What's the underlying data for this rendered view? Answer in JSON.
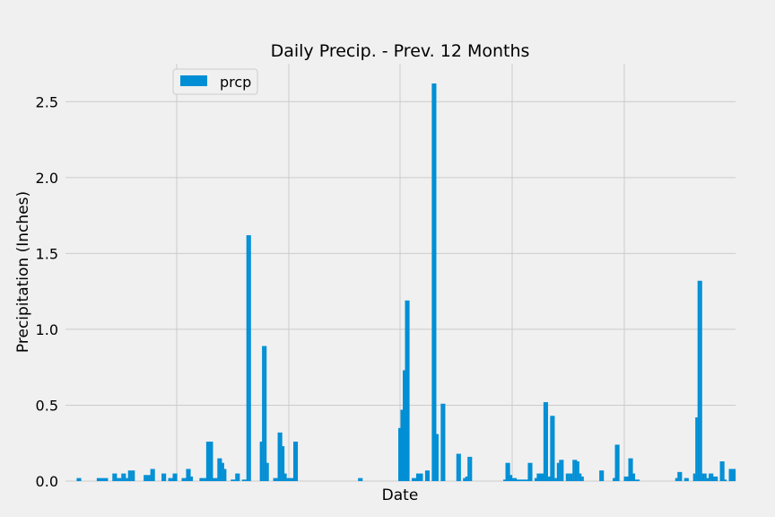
{
  "colors": {
    "background": "#f0f0f0",
    "grid": "#cbcbcb",
    "bar": "#008fd5",
    "text": "#000000",
    "legend_bg": "#f0f0f0",
    "legend_border": "#cccccc"
  },
  "chart_data": {
    "type": "bar",
    "title": "Daily Precip. - Prev. 12 Months",
    "xlabel": "Date",
    "ylabel": "Precipitation (Inches)",
    "ylim": [
      0,
      2.75
    ],
    "y_ticks": [
      "0.0",
      "0.5",
      "1.0",
      "1.5",
      "2.0",
      "2.5"
    ],
    "grid": true,
    "legend_position": "upper-left",
    "series": [
      {
        "name": "prcp",
        "values": [
          0.0,
          0.0,
          0.0,
          0.0,
          0.0,
          0.02,
          0.02,
          0.0,
          0.0,
          0.0,
          0.0,
          0.0,
          0.0,
          0.0,
          0.02,
          0.02,
          0.02,
          0.02,
          0.02,
          0.0,
          0.0,
          0.05,
          0.05,
          0.02,
          0.02,
          0.05,
          0.05,
          0.02,
          0.07,
          0.07,
          0.07,
          0.0,
          0.0,
          0.0,
          0.0,
          0.04,
          0.04,
          0.04,
          0.08,
          0.08,
          0.0,
          0.0,
          0.0,
          0.05,
          0.05,
          0.0,
          0.02,
          0.02,
          0.05,
          0.05,
          0.0,
          0.0,
          0.02,
          0.02,
          0.08,
          0.08,
          0.03,
          0.0,
          0.0,
          0.0,
          0.02,
          0.02,
          0.02,
          0.26,
          0.26,
          0.26,
          0.02,
          0.02,
          0.15,
          0.15,
          0.12,
          0.08,
          0.0,
          0.0,
          0.01,
          0.01,
          0.05,
          0.05,
          0.0,
          0.01,
          0.01,
          1.62,
          1.62,
          0.0,
          0.0,
          0.0,
          0.0,
          0.26,
          0.89,
          0.89,
          0.12,
          0.0,
          0.0,
          0.02,
          0.02,
          0.32,
          0.32,
          0.23,
          0.05,
          0.02,
          0.02,
          0.02,
          0.26,
          0.26,
          0.0,
          0.0,
          0.0,
          0.0,
          0.0,
          0.0,
          0.0,
          0.0,
          0.0,
          0.0,
          0.0,
          0.0,
          0.0,
          0.0,
          0.0,
          0.0,
          0.0,
          0.0,
          0.0,
          0.0,
          0.0,
          0.0,
          0.0,
          0.0,
          0.0,
          0.0,
          0.0,
          0.02,
          0.02,
          0.0,
          0.0,
          0.0,
          0.0,
          0.0,
          0.0,
          0.0,
          0.0,
          0.0,
          0.0,
          0.0,
          0.0,
          0.0,
          0.0,
          0.0,
          0.0,
          0.35,
          0.47,
          0.73,
          1.19,
          1.19,
          0.0,
          0.02,
          0.02,
          0.05,
          0.05,
          0.05,
          0.0,
          0.07,
          0.07,
          0.0,
          2.62,
          2.62,
          0.31,
          0.0,
          0.51,
          0.51,
          0.0,
          0.0,
          0.0,
          0.0,
          0.0,
          0.18,
          0.18,
          0.0,
          0.02,
          0.03,
          0.16,
          0.16,
          0.0,
          0.0,
          0.0,
          0.0,
          0.0,
          0.0,
          0.0,
          0.0,
          0.0,
          0.0,
          0.0,
          0.0,
          0.0,
          0.0,
          0.01,
          0.12,
          0.12,
          0.04,
          0.02,
          0.02,
          0.01,
          0.01,
          0.01,
          0.01,
          0.01,
          0.12,
          0.12,
          0.0,
          0.02,
          0.05,
          0.05,
          0.05,
          0.52,
          0.52,
          0.03,
          0.43,
          0.43,
          0.02,
          0.12,
          0.14,
          0.14,
          0.0,
          0.05,
          0.05,
          0.05,
          0.14,
          0.14,
          0.13,
          0.05,
          0.03,
          0.0,
          0.0,
          0.0,
          0.0,
          0.0,
          0.0,
          0.0,
          0.07,
          0.07,
          0.0,
          0.0,
          0.0,
          0.0,
          0.02,
          0.24,
          0.24,
          0.0,
          0.0,
          0.03,
          0.03,
          0.15,
          0.15,
          0.05,
          0.01,
          0.01,
          0.0,
          0.0,
          0.0,
          0.0,
          0.0,
          0.0,
          0.0,
          0.0,
          0.0,
          0.0,
          0.0,
          0.0,
          0.0,
          0.0,
          0.0,
          0.0,
          0.02,
          0.06,
          0.06,
          0.0,
          0.02,
          0.02,
          0.0,
          0.0,
          0.05,
          0.42,
          1.32,
          1.32,
          0.05,
          0.05,
          0.02,
          0.05,
          0.05,
          0.03,
          0.03,
          0.0,
          0.13,
          0.13,
          0.01,
          0.0,
          0.08,
          0.08,
          0.08
        ]
      }
    ]
  }
}
